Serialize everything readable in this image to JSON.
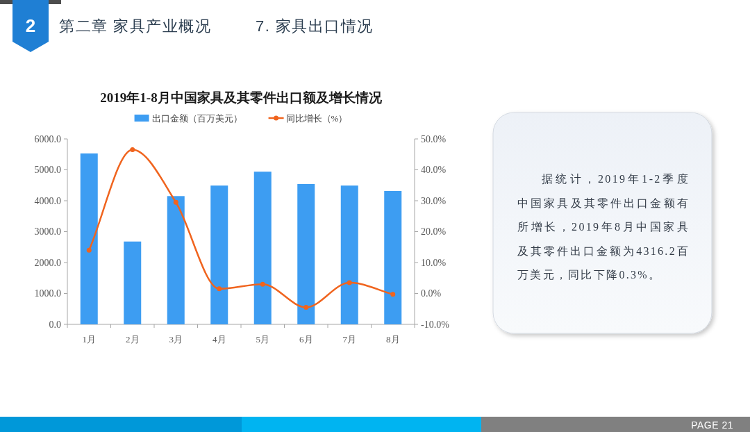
{
  "chart_data": {
    "type": "bar",
    "title": "2019年1-8月中国家具及其零件出口额及增长情况",
    "categories": [
      "1月",
      "2月",
      "3月",
      "4月",
      "5月",
      "6月",
      "7月",
      "8月"
    ],
    "series": [
      {
        "name": "出口金额（百万美元）",
        "color": "#3d9df2",
        "values": [
          5530,
          2680,
          4150,
          4490,
          4940,
          4540,
          4490,
          4316.2
        ]
      },
      {
        "name": "同比增长（%）",
        "type": "line",
        "axis": "y2",
        "color": "#f0641e",
        "marker": "circle",
        "values": [
          14,
          46.5,
          29.5,
          1.5,
          3,
          -4.5,
          3.5,
          -0.3
        ]
      }
    ],
    "ylim": [
      0,
      6000
    ],
    "yticks": [
      {
        "value": 0,
        "label": "0.0"
      },
      {
        "value": 1000,
        "label": "1000.0"
      },
      {
        "value": 2000,
        "label": "2000.0"
      },
      {
        "value": 3000,
        "label": "3000.0"
      },
      {
        "value": 4000,
        "label": "4000.0"
      },
      {
        "value": 5000,
        "label": "5000.0"
      },
      {
        "value": 6000,
        "label": "6000.0"
      }
    ],
    "y2lim": [
      -10,
      50
    ],
    "y2ticks": [
      {
        "value": -10,
        "label": "-10.0%"
      },
      {
        "value": 0,
        "label": "0.0%"
      },
      {
        "value": 10,
        "label": "10.0%"
      },
      {
        "value": 20,
        "label": "20.0%"
      },
      {
        "value": 30,
        "label": "30.0%"
      },
      {
        "value": 40,
        "label": "40.0%"
      },
      {
        "value": 50,
        "label": "50.0%"
      }
    ],
    "legend": "top",
    "annotations": [
      "2",
      "第二章 家具产业概况",
      "7. 家具出口情况",
      "据统计，2019年1-2季度中国家具及其零件出口金额有所增长，2019年8月中国家具及其零件出口金额为4316.2百万美元，同比下降0.3%。",
      "PAGE 21"
    ]
  }
}
